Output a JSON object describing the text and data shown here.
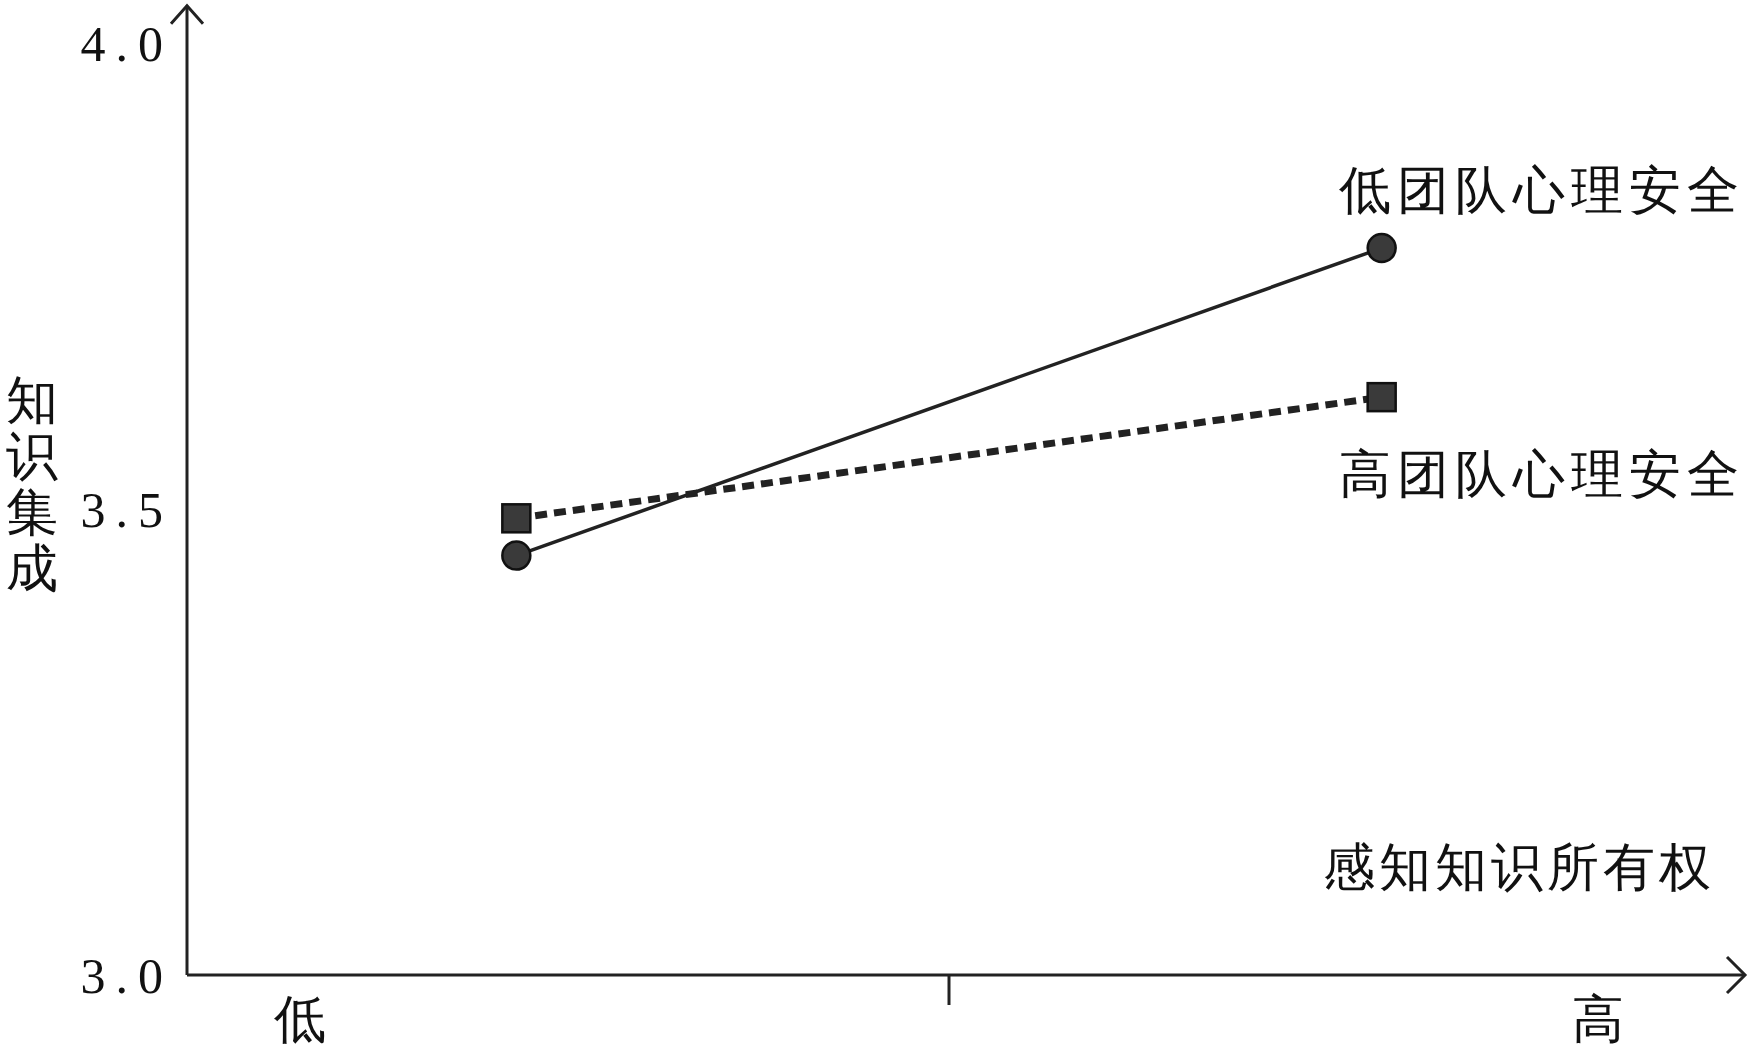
{
  "chart_data": {
    "type": "line",
    "xlabel": "感知知识所有权",
    "ylabel": "知识集成",
    "categories": [
      "低",
      null,
      null,
      null,
      null,
      null,
      "高"
    ],
    "ylim": [
      3,
      4.04
    ],
    "yticks": [
      {
        "value": 3,
        "label": "3.0"
      },
      {
        "value": 3.5,
        "label": "3.5"
      },
      {
        "value": 4,
        "label": "4.0"
      }
    ],
    "series": [
      {
        "name": "低团队心理安全",
        "color": "#222222",
        "values": [
          null,
          3.45,
          null,
          null,
          null,
          3.78,
          null
        ],
        "marker": "circle",
        "line_style": "solid"
      },
      {
        "name": "高团队心理安全",
        "color": "#222222",
        "values": [
          null,
          3.49,
          null,
          null,
          null,
          3.62,
          null
        ],
        "marker": "square",
        "line_style": "dashed"
      }
    ]
  }
}
